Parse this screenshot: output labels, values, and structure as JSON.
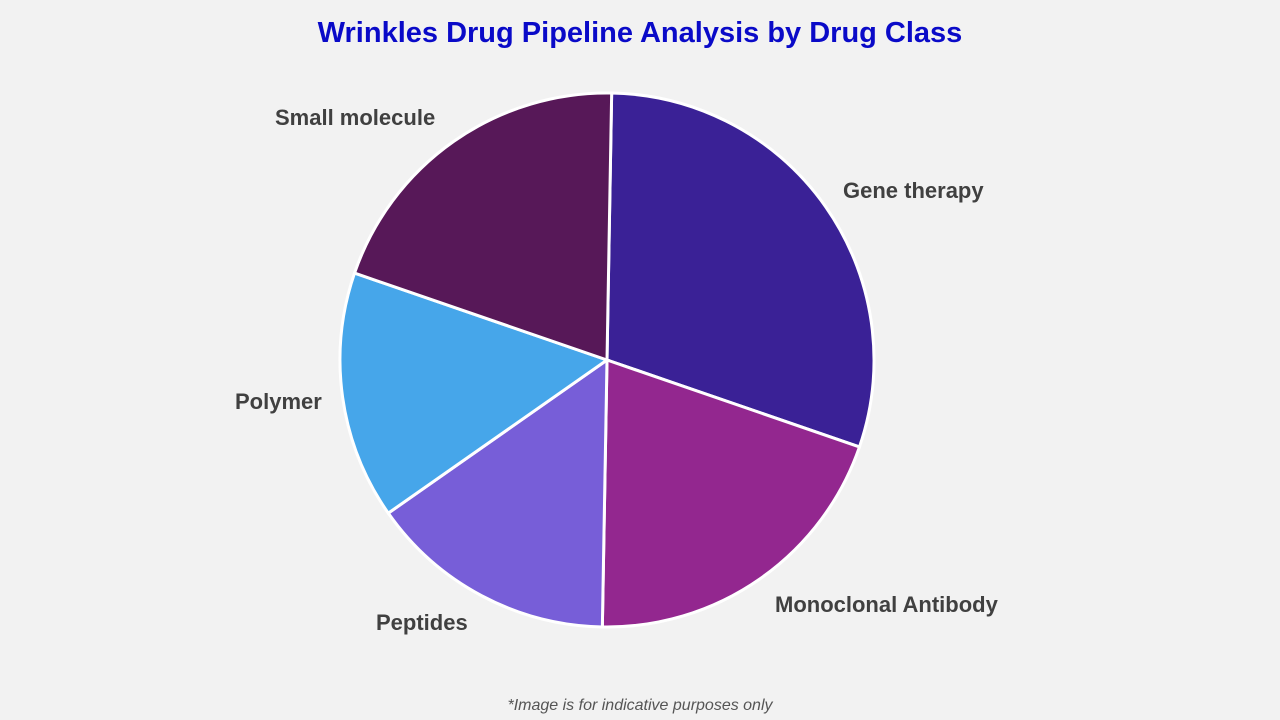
{
  "chart_data": {
    "type": "pie",
    "title": "Wrinkles Drug Pipeline Analysis by Drug Class",
    "categories": [
      "Gene therapy",
      "Monoclonal Antibody",
      "Peptides",
      "Polymer",
      "Small molecule"
    ],
    "values": [
      30,
      20,
      15,
      15,
      20
    ],
    "colors": [
      "#3a2196",
      "#93278f",
      "#775ed8",
      "#46a6ea",
      "#571858"
    ],
    "start_angle_deg": 1,
    "direction": "clockwise",
    "legend": "none (direct labels)",
    "footnote": "*Image is for indicative purposes only"
  },
  "title": "Wrinkles Drug Pipeline Analysis by Drug Class",
  "labels": {
    "gene_therapy": "Gene therapy",
    "monoclonal": "Monoclonal Antibody",
    "peptides": "Peptides",
    "polymer": "Polymer",
    "small_molecule": "Small molecule"
  },
  "footnote": "*Image is for indicative purposes only"
}
